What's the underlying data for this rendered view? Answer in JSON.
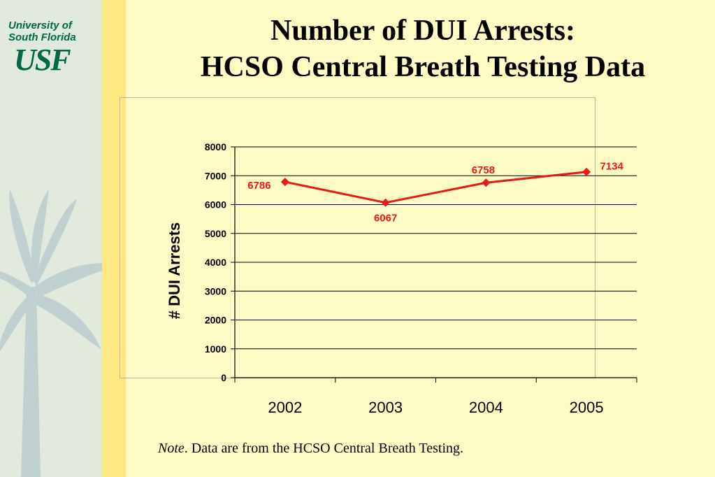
{
  "logo": {
    "line1": "University of",
    "line2": "South Florida",
    "mark": "USF"
  },
  "title": {
    "line1": "Number of DUI Arrests:",
    "line2": "HCSO Central Breath Testing Data"
  },
  "note": {
    "label": "Note",
    "text": ".  Data are from the HCSO Central Breath Testing."
  },
  "colors": {
    "background": "#FEFBC5",
    "sidebar": "#E1E9DD",
    "stripe": "#FEE882",
    "series": "#E41B17",
    "brand": "#006747"
  },
  "chart_data": {
    "type": "line",
    "categories": [
      "2002",
      "2003",
      "2004",
      "2005"
    ],
    "series": [
      {
        "values": [
          6786,
          6067,
          6758,
          7134
        ]
      }
    ],
    "data_labels": [
      "6786",
      "6067",
      "6758",
      "7134"
    ],
    "ylabel": "# DUI Arrests",
    "xlabel": "",
    "ylim": [
      0,
      8000
    ],
    "yticks": [
      0,
      1000,
      2000,
      3000,
      4000,
      5000,
      6000,
      7000,
      8000
    ],
    "grid": true,
    "legend": "none",
    "marker": "diamond"
  }
}
